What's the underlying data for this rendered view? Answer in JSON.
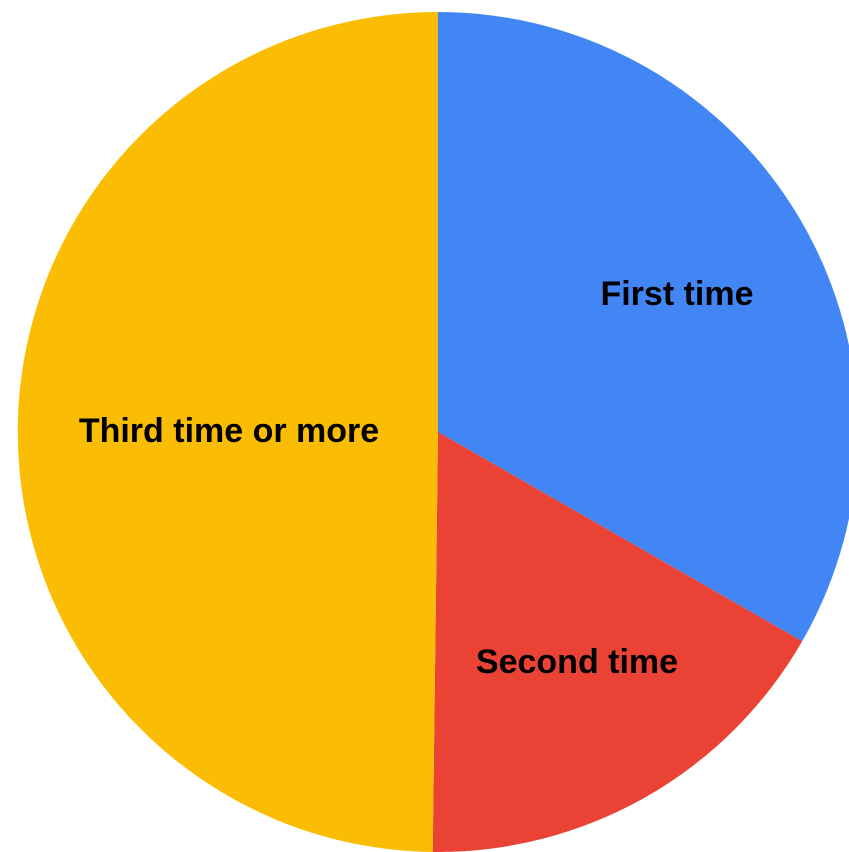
{
  "chart_data": {
    "type": "pie",
    "title": "",
    "legend": "none",
    "start_angle_deg": 0,
    "direction": "clockwise",
    "slices": [
      {
        "label": "First time",
        "value": 33.3,
        "color": "#4285F4"
      },
      {
        "label": "Second time",
        "value": 16.9,
        "color": "#EA4335"
      },
      {
        "label": "Third time or more",
        "value": 49.8,
        "color": "#FBBC04"
      }
    ]
  }
}
